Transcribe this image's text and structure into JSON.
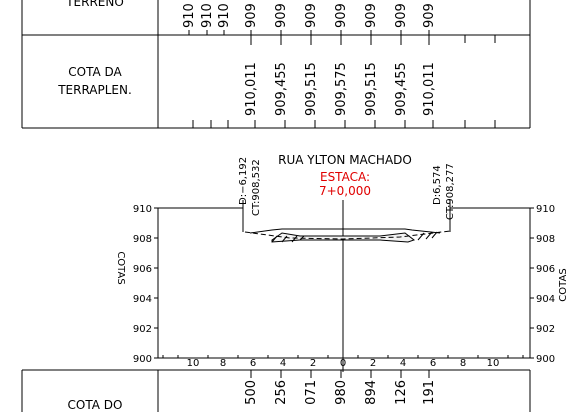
{
  "table_top": {
    "rows": [
      {
        "label": [
          "TERRENO"
        ],
        "values": [
          "910",
          "910",
          "910",
          "909",
          "909",
          "909",
          "909",
          "909",
          "909",
          "909"
        ]
      },
      {
        "label": [
          "COTA DA",
          "TERRAPLEN."
        ],
        "values": [
          "910,011",
          "909,455",
          "909,515",
          "909,575",
          "909,515",
          "909,455",
          "910,011"
        ]
      }
    ]
  },
  "section": {
    "title": "RUA YLTON MACHADO",
    "station_label": "ESTACA:",
    "station": "7+0,000",
    "left_offset": "D:−6,192",
    "left_elev": "CT:908,532",
    "right_offset": "D:6,574",
    "right_elev": "CT:908,277",
    "y_labels": [
      "910",
      "908",
      "906",
      "904",
      "902",
      "900"
    ],
    "y_axis_label": "COTAS",
    "x_labels": [
      "10",
      "8",
      "6",
      "4",
      "2",
      "0",
      "2",
      "4",
      "6",
      "8",
      "10"
    ]
  },
  "table_bottom": {
    "label": "COTA DO",
    "values": [
      "500",
      "256",
      "071",
      "980",
      "894",
      "126",
      "191"
    ]
  }
}
